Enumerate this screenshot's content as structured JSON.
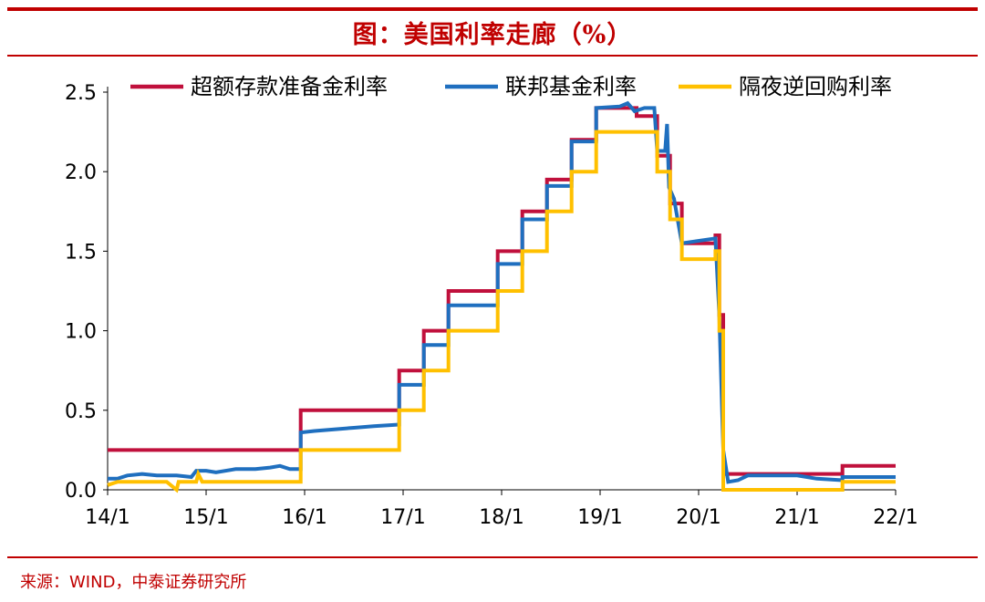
{
  "chart_data": {
    "type": "line",
    "title": "图：美国利率走廊（%）",
    "source": "来源：WIND，中泰证券研究所",
    "x_ticks": [
      "14/1",
      "15/1",
      "16/1",
      "17/1",
      "18/1",
      "19/1",
      "20/1",
      "21/1",
      "22/1"
    ],
    "y_ticks": [
      "0.0",
      "0.5",
      "1.0",
      "1.5",
      "2.0",
      "2.5"
    ],
    "xlim": [
      2014.0,
      2022.0
    ],
    "ylim": [
      0,
      2.5
    ],
    "legend_position": "top",
    "colors": {
      "ioer": "#c0103c",
      "effr": "#1f6fbf",
      "rrp": "#ffc000"
    },
    "series": [
      {
        "name": "超额存款准备金利率",
        "color": "#c0103c",
        "points": [
          [
            2014.0,
            0.25
          ],
          [
            2015.96,
            0.25
          ],
          [
            2015.96,
            0.5
          ],
          [
            2016.96,
            0.5
          ],
          [
            2016.96,
            0.75
          ],
          [
            2017.21,
            0.75
          ],
          [
            2017.21,
            1.0
          ],
          [
            2017.46,
            1.0
          ],
          [
            2017.46,
            1.25
          ],
          [
            2017.96,
            1.25
          ],
          [
            2017.96,
            1.5
          ],
          [
            2018.21,
            1.5
          ],
          [
            2018.21,
            1.75
          ],
          [
            2018.46,
            1.75
          ],
          [
            2018.46,
            1.95
          ],
          [
            2018.71,
            1.95
          ],
          [
            2018.71,
            2.2
          ],
          [
            2018.96,
            2.2
          ],
          [
            2018.96,
            2.4
          ],
          [
            2019.37,
            2.4
          ],
          [
            2019.37,
            2.35
          ],
          [
            2019.58,
            2.35
          ],
          [
            2019.58,
            2.1
          ],
          [
            2019.71,
            2.1
          ],
          [
            2019.71,
            1.8
          ],
          [
            2019.83,
            1.8
          ],
          [
            2019.83,
            1.55
          ],
          [
            2020.17,
            1.55
          ],
          [
            2020.17,
            1.6
          ],
          [
            2020.21,
            1.6
          ],
          [
            2020.21,
            1.1
          ],
          [
            2020.25,
            1.1
          ],
          [
            2020.25,
            0.1
          ],
          [
            2021.46,
            0.1
          ],
          [
            2021.46,
            0.15
          ],
          [
            2022.0,
            0.15
          ]
        ]
      },
      {
        "name": "联邦基金利率",
        "color": "#1f6fbf",
        "points": [
          [
            2014.0,
            0.07
          ],
          [
            2014.1,
            0.07
          ],
          [
            2014.2,
            0.09
          ],
          [
            2014.35,
            0.1
          ],
          [
            2014.5,
            0.09
          ],
          [
            2014.7,
            0.09
          ],
          [
            2014.85,
            0.08
          ],
          [
            2014.9,
            0.12
          ],
          [
            2015.0,
            0.12
          ],
          [
            2015.1,
            0.11
          ],
          [
            2015.3,
            0.13
          ],
          [
            2015.5,
            0.13
          ],
          [
            2015.65,
            0.14
          ],
          [
            2015.75,
            0.15
          ],
          [
            2015.85,
            0.13
          ],
          [
            2015.96,
            0.13
          ],
          [
            2015.96,
            0.36
          ],
          [
            2016.1,
            0.37
          ],
          [
            2016.3,
            0.38
          ],
          [
            2016.5,
            0.39
          ],
          [
            2016.7,
            0.4
          ],
          [
            2016.96,
            0.41
          ],
          [
            2016.96,
            0.66
          ],
          [
            2017.21,
            0.66
          ],
          [
            2017.21,
            0.91
          ],
          [
            2017.46,
            0.91
          ],
          [
            2017.46,
            1.16
          ],
          [
            2017.96,
            1.16
          ],
          [
            2017.96,
            1.42
          ],
          [
            2018.21,
            1.42
          ],
          [
            2018.21,
            1.7
          ],
          [
            2018.46,
            1.7
          ],
          [
            2018.46,
            1.91
          ],
          [
            2018.71,
            1.91
          ],
          [
            2018.71,
            2.19
          ],
          [
            2018.96,
            2.19
          ],
          [
            2018.96,
            2.4
          ],
          [
            2019.2,
            2.41
          ],
          [
            2019.28,
            2.43
          ],
          [
            2019.35,
            2.38
          ],
          [
            2019.45,
            2.4
          ],
          [
            2019.55,
            2.4
          ],
          [
            2019.58,
            2.13
          ],
          [
            2019.66,
            2.13
          ],
          [
            2019.68,
            2.3
          ],
          [
            2019.7,
            1.9
          ],
          [
            2019.75,
            1.83
          ],
          [
            2019.83,
            1.55
          ],
          [
            2020.17,
            1.58
          ],
          [
            2020.21,
            1.1
          ],
          [
            2020.25,
            0.25
          ],
          [
            2020.3,
            0.05
          ],
          [
            2020.4,
            0.06
          ],
          [
            2020.5,
            0.09
          ],
          [
            2020.8,
            0.09
          ],
          [
            2021.0,
            0.09
          ],
          [
            2021.2,
            0.07
          ],
          [
            2021.46,
            0.06
          ],
          [
            2021.46,
            0.08
          ],
          [
            2022.0,
            0.08
          ]
        ]
      },
      {
        "name": "隔夜逆回购利率",
        "color": "#ffc000",
        "points": [
          [
            2014.0,
            0.03
          ],
          [
            2014.1,
            0.05
          ],
          [
            2014.6,
            0.05
          ],
          [
            2014.7,
            0.0
          ],
          [
            2014.72,
            0.05
          ],
          [
            2014.9,
            0.05
          ],
          [
            2014.92,
            0.1
          ],
          [
            2014.96,
            0.05
          ],
          [
            2015.96,
            0.05
          ],
          [
            2015.96,
            0.25
          ],
          [
            2016.96,
            0.25
          ],
          [
            2016.96,
            0.5
          ],
          [
            2017.21,
            0.5
          ],
          [
            2017.21,
            0.75
          ],
          [
            2017.46,
            0.75
          ],
          [
            2017.46,
            1.0
          ],
          [
            2017.96,
            1.0
          ],
          [
            2017.96,
            1.25
          ],
          [
            2018.21,
            1.25
          ],
          [
            2018.21,
            1.5
          ],
          [
            2018.46,
            1.5
          ],
          [
            2018.46,
            1.75
          ],
          [
            2018.71,
            1.75
          ],
          [
            2018.71,
            2.0
          ],
          [
            2018.96,
            2.0
          ],
          [
            2018.96,
            2.25
          ],
          [
            2019.58,
            2.25
          ],
          [
            2019.58,
            2.0
          ],
          [
            2019.71,
            2.0
          ],
          [
            2019.71,
            1.7
          ],
          [
            2019.83,
            1.7
          ],
          [
            2019.83,
            1.45
          ],
          [
            2020.17,
            1.45
          ],
          [
            2020.17,
            1.5
          ],
          [
            2020.21,
            1.5
          ],
          [
            2020.21,
            1.0
          ],
          [
            2020.25,
            1.0
          ],
          [
            2020.25,
            0.0
          ],
          [
            2021.46,
            0.0
          ],
          [
            2021.46,
            0.05
          ],
          [
            2022.0,
            0.05
          ]
        ]
      }
    ]
  }
}
